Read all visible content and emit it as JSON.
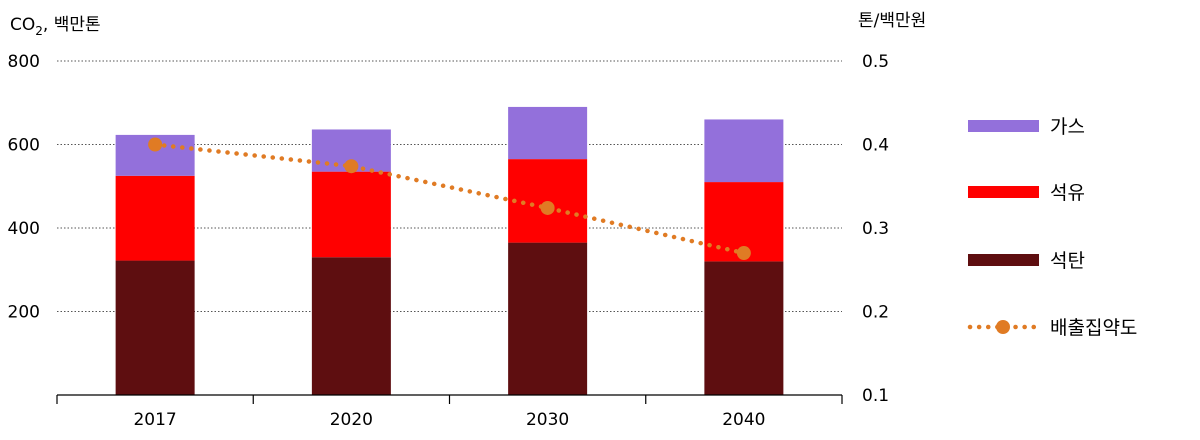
{
  "chart_data": {
    "type": "bar",
    "stacked": true,
    "categories": [
      "2017",
      "2020",
      "2030",
      "2040"
    ],
    "series": [
      {
        "name": "석탄",
        "values": [
          322,
          330,
          365,
          320
        ],
        "color": "#5e0e10"
      },
      {
        "name": "석유",
        "values": [
          203,
          205,
          200,
          190
        ],
        "color": "#ff0000"
      },
      {
        "name": "가스",
        "values": [
          98,
          101,
          125,
          150
        ],
        "color": "#9370db"
      }
    ],
    "line_series": {
      "name": "배출집약도",
      "values": [
        0.4,
        0.374,
        0.324,
        0.27
      ],
      "color": "#e07b24",
      "axis": "right",
      "style": "dotted"
    },
    "y_left": {
      "label_prefix": "CO",
      "label_sub": "2",
      "label_suffix": ", 백만톤",
      "range": [
        0,
        800
      ],
      "ticks": [
        200,
        400,
        600,
        800
      ]
    },
    "y_right": {
      "label": "톤/백만원",
      "range": [
        0.1,
        0.5
      ],
      "ticks": [
        "0.1",
        "0.2",
        "0.3",
        "0.4",
        "0.5"
      ]
    },
    "grid": true,
    "legend": {
      "position": "right",
      "items": [
        "가스",
        "석유",
        "석탄",
        "배출집약도"
      ]
    }
  }
}
